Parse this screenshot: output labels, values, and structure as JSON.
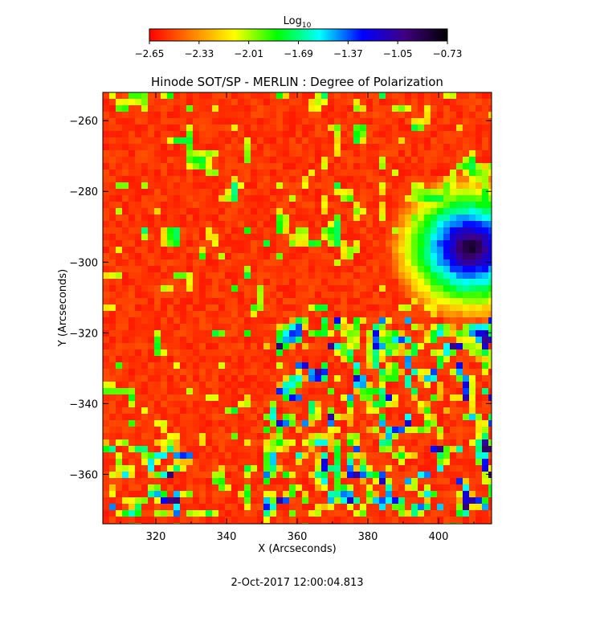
{
  "chart_data": {
    "type": "heatmap",
    "title": "Hinode SOT/SP - MERLIN : Degree of Polarization",
    "xlabel": "X (Arcseconds)",
    "ylabel": "Y (Arcseconds)",
    "xlim": [
      305,
      415
    ],
    "ylim": [
      -374,
      -252
    ],
    "x_ticks": [
      {
        "value": 320,
        "label": "320"
      },
      {
        "value": 340,
        "label": "340"
      },
      {
        "value": 360,
        "label": "360"
      },
      {
        "value": 380,
        "label": "380"
      },
      {
        "value": 400,
        "label": "400"
      }
    ],
    "y_ticks": [
      {
        "value": -260,
        "label": "−260"
      },
      {
        "value": -280,
        "label": "−280"
      },
      {
        "value": -300,
        "label": "−300"
      },
      {
        "value": -320,
        "label": "−320"
      },
      {
        "value": -340,
        "label": "−340"
      },
      {
        "value": -360,
        "label": "−360"
      }
    ],
    "colorbar": {
      "label_main": "Log",
      "label_sub": "10",
      "range": [
        -2.65,
        -0.73
      ],
      "tick_labels": [
        "−2.65",
        "−2.33",
        "−2.01",
        "−1.69",
        "−1.37",
        "−1.05",
        "−0.73"
      ],
      "colors": [
        "#ff0000",
        "#ff8000",
        "#ffff00",
        "#00ff00",
        "#00ffff",
        "#0000ff",
        "#400080",
        "#000000"
      ]
    },
    "features": [
      {
        "kind": "sunspot",
        "x": 409,
        "y": -296,
        "value": -0.8
      },
      {
        "kind": "plage-network",
        "x_range": [
          350,
          415
        ],
        "y_range": [
          -372,
          -315
        ],
        "value": -1.5
      },
      {
        "kind": "plage-network",
        "x_range": [
          305,
          330
        ],
        "y_range": [
          -372,
          -350
        ],
        "value": -1.6
      }
    ],
    "footer": "2-Oct-2017 12:00:04.813"
  }
}
